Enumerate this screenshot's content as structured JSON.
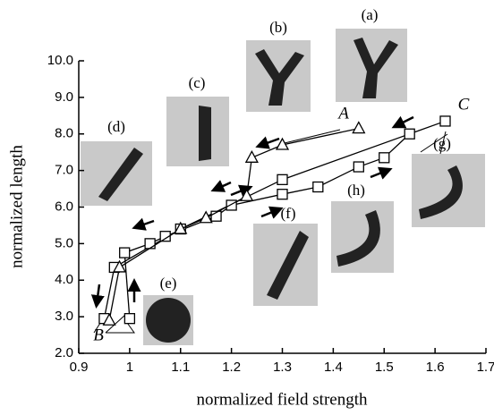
{
  "chart_data": {
    "type": "line",
    "x_label": "normalized field strength",
    "y_label": "normalized length",
    "xlim": [
      0.9,
      1.7
    ],
    "xticks": [
      0.9,
      1.0,
      1.1,
      1.2,
      1.3,
      1.4,
      1.5,
      1.6,
      1.7
    ],
    "ylim": [
      2,
      10
    ],
    "yticks": [
      {
        "value": 2,
        "label": "2.0"
      },
      {
        "value": 3,
        "label": "3.0"
      },
      {
        "value": 4,
        "label": "4.0"
      },
      {
        "value": 5,
        "label": "5.0"
      },
      {
        "value": 6,
        "label": "6.0"
      },
      {
        "value": 7,
        "label": "7.0"
      },
      {
        "value": 8,
        "label": "8.0"
      },
      {
        "value": 9,
        "label": "9.0"
      },
      {
        "value": 10,
        "label": "10.0"
      }
    ],
    "series": [
      {
        "marker": "square",
        "color": "#000000",
        "x": [
          1.0,
          0.99,
          1.04,
          1.07,
          1.17,
          1.2,
          1.3,
          1.37,
          1.45,
          1.5,
          1.55,
          1.62,
          1.3,
          1.1,
          0.97,
          0.95
        ],
        "values": [
          2.95,
          4.75,
          5.0,
          5.2,
          5.75,
          6.05,
          6.35,
          6.55,
          7.1,
          7.35,
          8.0,
          8.35,
          6.75,
          5.4,
          4.35,
          2.95
        ]
      },
      {
        "marker": "triangle",
        "color": "#000000",
        "x": [
          0.96,
          0.98,
          1.1,
          1.15,
          1.23,
          1.24,
          1.3,
          1.45
        ],
        "values": [
          2.9,
          4.35,
          5.4,
          5.7,
          6.3,
          7.35,
          7.7,
          8.15
        ]
      }
    ]
  },
  "annotations": [
    "(a)",
    "(b)",
    "(c)",
    "(d)",
    "(e)",
    "(f)",
    "(g)",
    "(h)",
    "A",
    "B",
    "C"
  ]
}
